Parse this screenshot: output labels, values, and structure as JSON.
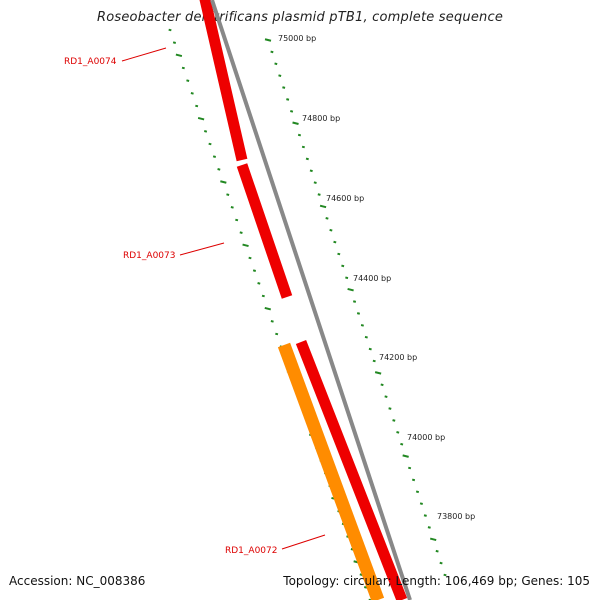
{
  "title": "Roseobacter denitrificans plasmid pTB1, complete sequence",
  "footer": {
    "accession": "Accession: NC_008386",
    "summary": "Topology: circular; Length: 106,469 bp; Genes: 105"
  },
  "colors": {
    "red_gene": "#ee0000",
    "orange_gene": "#ff8c00",
    "backbone": "#888888",
    "tick": "#228822",
    "label": "#dd0000"
  },
  "ruler_ticks": [
    "75000 bp",
    "74800 bp",
    "74600 bp",
    "74400 bp",
    "74200 bp",
    "74000 bp",
    "73800 bp"
  ],
  "genes": [
    {
      "label": "RD1_A0074",
      "color": "red"
    },
    {
      "label": "RD1_A0073",
      "color": "red"
    },
    {
      "label": "RD1_A0072",
      "color": "orange"
    }
  ]
}
